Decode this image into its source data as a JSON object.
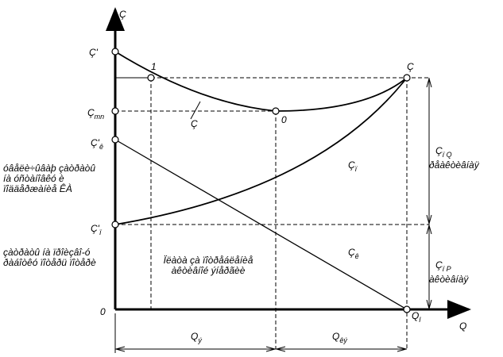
{
  "axes": {
    "y": "Ç",
    "x": "Q",
    "origin": "0"
  },
  "points": {
    "c_prime": {
      "main": "Ç'",
      "sub": ""
    },
    "c_min": {
      "main": "Ç",
      "sub": "mn"
    },
    "c_k_prime": {
      "main": "Ç'",
      "sub": "ê"
    },
    "c_p_prime": {
      "main": "Ç'",
      "sub": "ï"
    },
    "point_1": "1",
    "point_c": "Ç",
    "point_0": "0",
    "curve_c": "Ç",
    "q_l": {
      "main": "Q",
      "sub": "l"
    }
  },
  "regions": {
    "c_p": {
      "main": "Ç",
      "sub": "ï"
    },
    "c_k": {
      "main": "Ç",
      "sub": "ê"
    }
  },
  "notes": {
    "upper_left": [
      "óâåëè÷ûâàþ çàòðàòû",
      "íà óñòàíîâêó è",
      "ïîääåðæàíèå ÊÀ"
    ],
    "lower_left": [
      "çàòðàòû íà ïðîèçâî-ó",
      "ðàáîòêó ïîòåðü ïîòåðè"
    ],
    "center": [
      "Ïëàòà çà ïîòðåáëåíèå",
      "àêòèâíîé ýíåðãèè"
    ]
  },
  "dimensions": {
    "right_upper": {
      "main": "Ç",
      "sub": "ï Q",
      "caption": "ðåàêòèâíàÿ"
    },
    "right_lower": {
      "main": "Ç",
      "sub": "ï P",
      "caption": "àêòèâíàÿ"
    },
    "bottom_left": {
      "main": "Q",
      "sub": "ý"
    },
    "bottom_right": {
      "main": "Q",
      "sub": "êý"
    }
  }
}
